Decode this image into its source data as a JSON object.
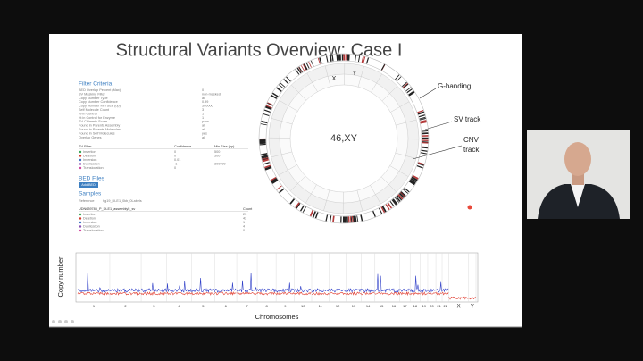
{
  "slide": {
    "title": "Structural Variants Overview: Case I",
    "filter_panel": {
      "heading": "Filter Criteria",
      "criteria": [
        [
          "BED Overlap Percent (Max)",
          "0"
        ],
        [
          "SV Masking Filter",
          "non-masked"
        ],
        [
          "Copy Number Type",
          "all"
        ],
        [
          "Copy Number Confidence",
          "0.99"
        ],
        [
          "Copy Number Min Size (bp)",
          "500000"
        ],
        [
          "Self Molecule Count",
          "3"
        ],
        [
          "% in Control",
          "1"
        ],
        [
          "% in Control for Enzyme",
          "1"
        ],
        [
          "SV Chimeric Score",
          "pass"
        ],
        [
          "Found in Parents Assembly",
          "all"
        ],
        [
          "Found in Parents Molecules",
          "all"
        ],
        [
          "Found in Self Molecules",
          "yes"
        ],
        [
          "Overlap Genes",
          "all"
        ]
      ],
      "sv_table": {
        "header": [
          "SV Filter",
          "Confidence",
          "Min Size (bp)"
        ],
        "rows": [
          [
            "Insertion",
            "0",
            "500"
          ],
          [
            "Deletion",
            "0",
            "500"
          ],
          [
            "Inversion",
            "0.01"
          ],
          [
            "Duplication",
            "-1",
            "300000"
          ],
          [
            "Translocation",
            "0"
          ]
        ]
      },
      "bed_heading": "BED Files",
      "bed_button": "Add BED",
      "samples_heading": "Samples",
      "reference_label": "Reference",
      "reference_value": "hg19_DLE1_0kb_0Labels",
      "sample_header": [
        "UDN639785_P_DLE1_assembly5_sv",
        "Count"
      ],
      "sample_rows": [
        [
          "Insertion",
          "23"
        ],
        [
          "Deletion",
          "42"
        ],
        [
          "Inversion",
          "1"
        ],
        [
          "Duplication",
          "4"
        ],
        [
          "Translocation",
          "0"
        ]
      ]
    },
    "circos": {
      "labels": [
        "X",
        "Y"
      ],
      "center": "46,XY",
      "annotations": [
        "G-banding",
        "SV track",
        "CNV",
        "track"
      ]
    },
    "cnv_plot": {
      "y_label": "Copy number",
      "x_label": "Chromosomes",
      "chromosomes": [
        "1",
        "2",
        "3",
        "4",
        "5",
        "6",
        "7",
        "8",
        "9",
        "10",
        "11",
        "12",
        "13",
        "14",
        "15",
        "16",
        "17",
        "18",
        "19",
        "20",
        "21",
        "22",
        "X",
        "Y"
      ]
    }
  }
}
